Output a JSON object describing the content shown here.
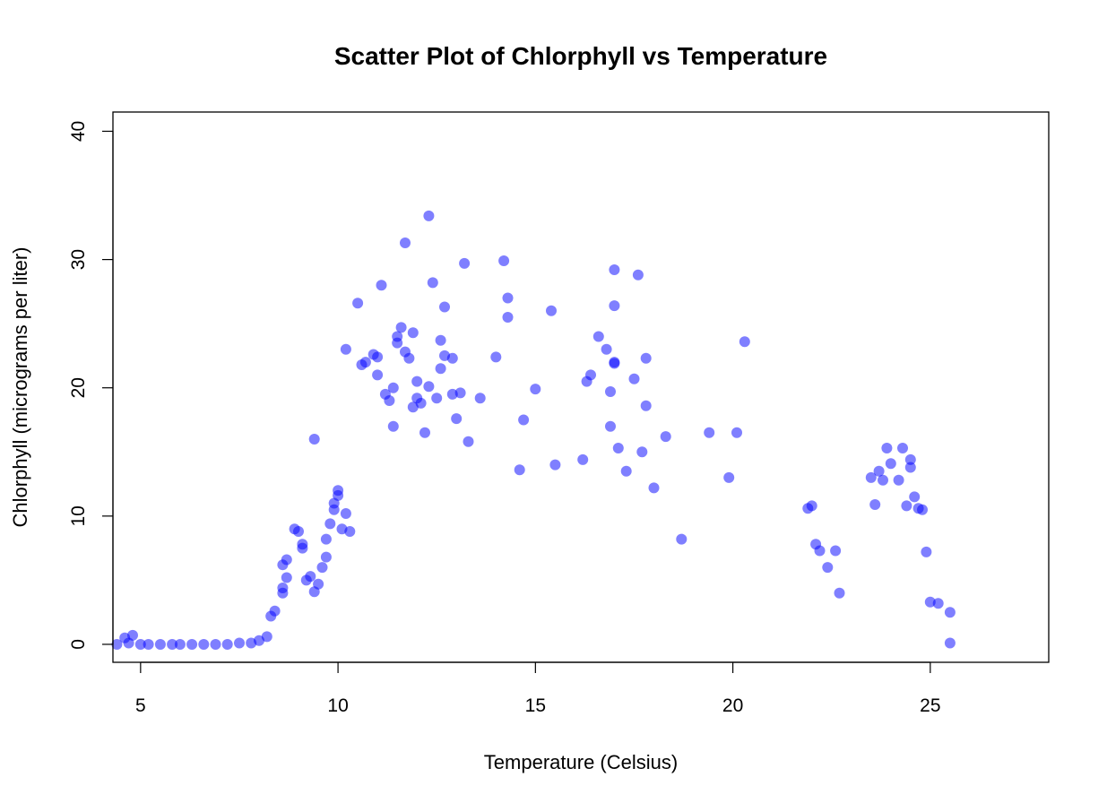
{
  "chart_data": {
    "type": "scatter",
    "title": "Scatter Plot of Chlorphyll vs Temperature",
    "xlabel": "Temperature (Celsius)",
    "ylabel": "Chlorphyll (micrograms per liter)",
    "xlim": [
      4.3,
      28.0
    ],
    "ylim": [
      -1.4,
      41.5
    ],
    "xticks": [
      5,
      10,
      15,
      20,
      25
    ],
    "xtick_labels": [
      "5",
      "10",
      "15",
      "20",
      "25"
    ],
    "yticks": [
      0,
      10,
      20,
      30,
      40
    ],
    "ytick_labels": [
      "0",
      "10",
      "20",
      "30",
      "40"
    ],
    "grid": false,
    "legend": "none",
    "point_color": "#0000ff",
    "point_opacity": 0.5,
    "series": [
      {
        "points": [
          [
            4.4,
            0.0
          ],
          [
            4.6,
            0.5
          ],
          [
            4.8,
            0.7
          ],
          [
            4.7,
            0.1
          ],
          [
            5.0,
            0.0
          ],
          [
            5.2,
            0.0
          ],
          [
            5.5,
            0.0
          ],
          [
            5.8,
            0.0
          ],
          [
            6.0,
            0.0
          ],
          [
            6.3,
            0.0
          ],
          [
            6.6,
            0.0
          ],
          [
            6.9,
            0.0
          ],
          [
            7.2,
            0.0
          ],
          [
            7.5,
            0.1
          ],
          [
            7.8,
            0.1
          ],
          [
            8.0,
            0.3
          ],
          [
            8.2,
            0.6
          ],
          [
            8.3,
            2.2
          ],
          [
            8.4,
            2.6
          ],
          [
            8.6,
            4.0
          ],
          [
            8.6,
            4.4
          ],
          [
            8.7,
            5.2
          ],
          [
            8.6,
            6.2
          ],
          [
            8.7,
            6.6
          ],
          [
            8.9,
            9.0
          ],
          [
            9.0,
            8.8
          ],
          [
            9.1,
            7.8
          ],
          [
            9.1,
            7.5
          ],
          [
            9.2,
            5.0
          ],
          [
            9.3,
            5.3
          ],
          [
            9.4,
            4.1
          ],
          [
            9.5,
            4.7
          ],
          [
            9.4,
            16.0
          ],
          [
            9.6,
            6.0
          ],
          [
            9.7,
            6.8
          ],
          [
            9.7,
            8.2
          ],
          [
            9.8,
            9.4
          ],
          [
            9.9,
            10.5
          ],
          [
            9.9,
            11.0
          ],
          [
            10.0,
            11.6
          ],
          [
            10.0,
            12.0
          ],
          [
            10.1,
            9.0
          ],
          [
            10.2,
            10.2
          ],
          [
            10.3,
            8.8
          ],
          [
            10.2,
            23.0
          ],
          [
            10.5,
            26.6
          ],
          [
            10.6,
            21.8
          ],
          [
            10.7,
            22.0
          ],
          [
            10.9,
            22.6
          ],
          [
            11.0,
            22.4
          ],
          [
            11.1,
            28.0
          ],
          [
            11.0,
            21.0
          ],
          [
            11.2,
            19.5
          ],
          [
            11.3,
            19.0
          ],
          [
            11.4,
            20.0
          ],
          [
            11.4,
            17.0
          ],
          [
            11.5,
            23.5
          ],
          [
            11.5,
            24.0
          ],
          [
            11.6,
            24.7
          ],
          [
            11.7,
            22.8
          ],
          [
            11.7,
            31.3
          ],
          [
            11.8,
            22.3
          ],
          [
            11.9,
            24.3
          ],
          [
            11.9,
            18.5
          ],
          [
            12.0,
            20.5
          ],
          [
            12.0,
            19.2
          ],
          [
            12.1,
            18.8
          ],
          [
            12.2,
            16.5
          ],
          [
            12.3,
            33.4
          ],
          [
            12.3,
            20.1
          ],
          [
            12.4,
            28.2
          ],
          [
            12.5,
            19.2
          ],
          [
            12.6,
            21.5
          ],
          [
            12.6,
            23.7
          ],
          [
            12.7,
            26.3
          ],
          [
            12.7,
            22.5
          ],
          [
            12.9,
            19.5
          ],
          [
            12.9,
            22.3
          ],
          [
            13.0,
            17.6
          ],
          [
            13.1,
            19.6
          ],
          [
            13.2,
            29.7
          ],
          [
            13.3,
            15.8
          ],
          [
            13.6,
            19.2
          ],
          [
            14.0,
            22.4
          ],
          [
            14.2,
            29.9
          ],
          [
            14.3,
            27.0
          ],
          [
            14.3,
            25.5
          ],
          [
            14.6,
            13.6
          ],
          [
            14.7,
            17.5
          ],
          [
            15.0,
            19.9
          ],
          [
            15.4,
            26.0
          ],
          [
            15.5,
            14.0
          ],
          [
            16.2,
            14.4
          ],
          [
            16.3,
            20.5
          ],
          [
            16.4,
            21.0
          ],
          [
            16.6,
            24.0
          ],
          [
            16.8,
            23.0
          ],
          [
            16.9,
            19.7
          ],
          [
            16.9,
            17.0
          ],
          [
            17.0,
            29.2
          ],
          [
            17.0,
            26.4
          ],
          [
            17.0,
            22.0
          ],
          [
            17.0,
            21.9
          ],
          [
            17.1,
            15.3
          ],
          [
            17.3,
            13.5
          ],
          [
            17.5,
            20.7
          ],
          [
            17.6,
            28.8
          ],
          [
            17.7,
            15.0
          ],
          [
            17.8,
            22.3
          ],
          [
            17.8,
            18.6
          ],
          [
            18.0,
            12.2
          ],
          [
            18.3,
            16.2
          ],
          [
            18.7,
            8.2
          ],
          [
            19.4,
            16.5
          ],
          [
            19.9,
            13.0
          ],
          [
            20.1,
            16.5
          ],
          [
            20.3,
            23.6
          ],
          [
            21.9,
            10.6
          ],
          [
            22.0,
            10.8
          ],
          [
            22.1,
            7.8
          ],
          [
            22.2,
            7.3
          ],
          [
            22.4,
            6.0
          ],
          [
            22.6,
            7.3
          ],
          [
            22.7,
            4.0
          ],
          [
            23.5,
            13.0
          ],
          [
            23.6,
            10.9
          ],
          [
            23.7,
            13.5
          ],
          [
            23.8,
            12.8
          ],
          [
            23.9,
            15.3
          ],
          [
            24.0,
            14.1
          ],
          [
            24.2,
            12.8
          ],
          [
            24.3,
            15.3
          ],
          [
            24.4,
            10.8
          ],
          [
            24.5,
            14.4
          ],
          [
            24.5,
            13.8
          ],
          [
            24.6,
            11.5
          ],
          [
            24.7,
            10.6
          ],
          [
            24.8,
            10.5
          ],
          [
            24.9,
            7.2
          ],
          [
            25.0,
            3.3
          ],
          [
            25.2,
            3.2
          ],
          [
            25.5,
            2.5
          ],
          [
            25.5,
            0.1
          ]
        ]
      }
    ]
  }
}
